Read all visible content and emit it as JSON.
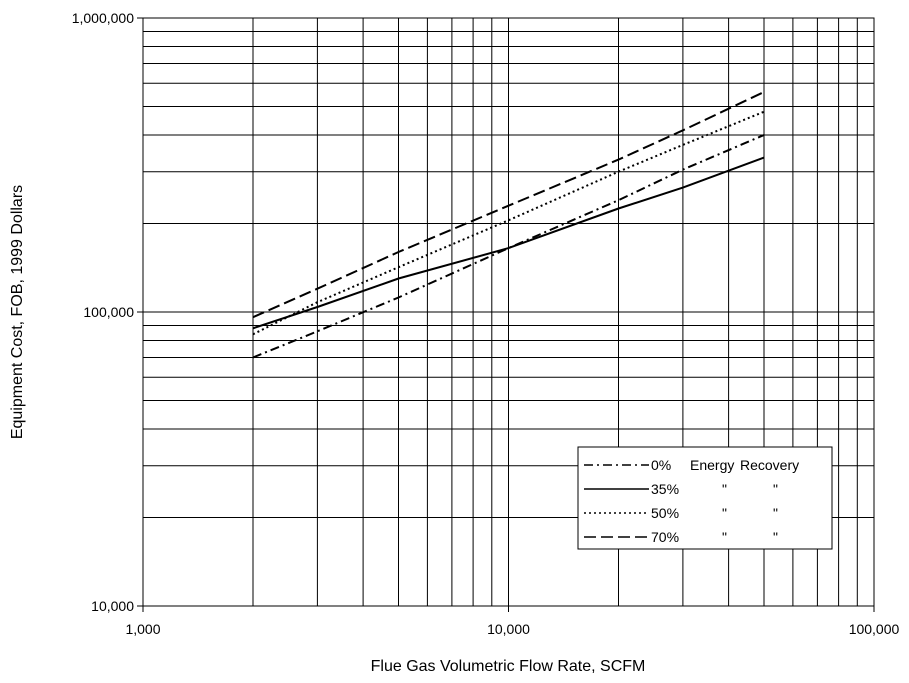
{
  "chart_data": {
    "type": "line",
    "xscale": "log",
    "yscale": "log",
    "xlim": [
      1000,
      100000
    ],
    "ylim": [
      10000,
      1000000
    ],
    "grid": true,
    "xlabel": "Flue Gas Volumetric Flow Rate, SCFM",
    "ylabel": "Equipment Cost, FOB, 1999 Dollars",
    "x_ticks": [
      "1,000",
      "10,000",
      "100,000"
    ],
    "y_ticks": [
      "1,000,000",
      "100,000",
      "10,000"
    ],
    "legend_position": "lower-right",
    "series": [
      {
        "name": "0%",
        "legend_cols": [
          "Energy",
          "Recovery"
        ],
        "dash": "dashdot",
        "points": [
          [
            2000,
            70000
          ],
          [
            3000,
            86000
          ],
          [
            5000,
            112000
          ],
          [
            10000,
            165000
          ],
          [
            20000,
            240000
          ],
          [
            30000,
            305000
          ],
          [
            50000,
            400000
          ]
        ]
      },
      {
        "name": "35%",
        "legend_cols": [
          "\"",
          "\""
        ],
        "dash": "solid",
        "points": [
          [
            2000,
            88000
          ],
          [
            3000,
            104000
          ],
          [
            5000,
            130000
          ],
          [
            10000,
            165000
          ],
          [
            20000,
            225000
          ],
          [
            30000,
            265000
          ],
          [
            50000,
            335000
          ]
        ]
      },
      {
        "name": "50%",
        "legend_cols": [
          "\"",
          "\""
        ],
        "dash": "dotted",
        "points": [
          [
            2000,
            84000
          ],
          [
            3000,
            108000
          ],
          [
            5000,
            142000
          ],
          [
            10000,
            205000
          ],
          [
            20000,
            300000
          ],
          [
            30000,
            370000
          ],
          [
            50000,
            480000
          ]
        ]
      },
      {
        "name": "70%",
        "legend_cols": [
          "\"",
          "\""
        ],
        "dash": "dashed",
        "points": [
          [
            2000,
            96000
          ],
          [
            3000,
            120000
          ],
          [
            5000,
            160000
          ],
          [
            10000,
            230000
          ],
          [
            20000,
            330000
          ],
          [
            30000,
            415000
          ],
          [
            50000,
            560000
          ]
        ]
      }
    ]
  }
}
